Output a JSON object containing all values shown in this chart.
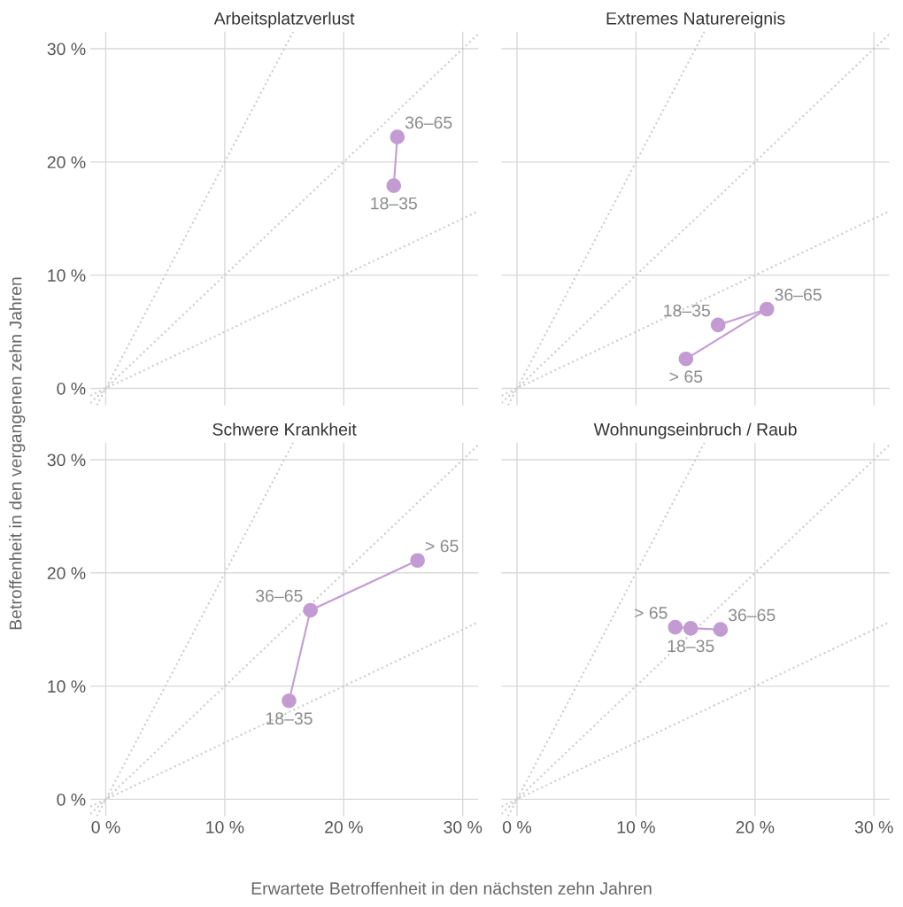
{
  "chart_data": [
    {
      "type": "line",
      "title": "Arbeitsplatzverlust",
      "ylabel": "Betroffenheit in den vergangenen zehn Jahren",
      "xlim": [
        -1.3,
        31.3
      ],
      "ylim": [
        -1.5,
        31.5
      ],
      "xticks": [
        0,
        10,
        20,
        30
      ],
      "yticks": [
        {
          "value": 0,
          "label": "0 %"
        },
        {
          "value": 10,
          "label": "10 %"
        },
        {
          "value": 20,
          "label": "20 %"
        },
        {
          "value": 30,
          "label": "30 %"
        }
      ],
      "grid": true,
      "tick_labels": "y",
      "series": [
        {
          "color": "#cccccc",
          "line_style": "dotted",
          "marker": "none",
          "x": [
            -1.3,
            31.3
          ],
          "values": [
            -0.65,
            15.65
          ]
        },
        {
          "color": "#cccccc",
          "line_style": "dotted",
          "marker": "none",
          "x": [
            -1.3,
            31.3
          ],
          "values": [
            -1.3,
            31.3
          ]
        },
        {
          "color": "#cccccc",
          "line_style": "dotted",
          "marker": "none",
          "x": [
            -0.75,
            15.75
          ],
          "values": [
            -1.5,
            31.5
          ]
        },
        {
          "color": "#c39bd3",
          "line_style": "solid",
          "marker": "circle",
          "x": [
            24.2,
            24.5
          ],
          "values": [
            17.9,
            22.2
          ],
          "value_labels": [
            "18–35",
            "36–65"
          ]
        }
      ]
    },
    {
      "type": "line",
      "title": "Extremes Naturereignis",
      "xlim": [
        -1.3,
        31.3
      ],
      "ylim": [
        -1.5,
        31.5
      ],
      "xticks": [
        0,
        10,
        20,
        30
      ],
      "yticks": [
        0,
        10,
        20,
        30
      ],
      "grid": true,
      "tick_labels": false,
      "series": [
        {
          "color": "#cccccc",
          "line_style": "dotted",
          "marker": "none",
          "x": [
            -1.3,
            31.3
          ],
          "values": [
            -0.65,
            15.65
          ]
        },
        {
          "color": "#cccccc",
          "line_style": "dotted",
          "marker": "none",
          "x": [
            -1.3,
            31.3
          ],
          "values": [
            -1.3,
            31.3
          ]
        },
        {
          "color": "#cccccc",
          "line_style": "dotted",
          "marker": "none",
          "x": [
            -0.75,
            15.75
          ],
          "values": [
            -1.5,
            31.5
          ]
        },
        {
          "color": "#c39bd3",
          "line_style": "solid",
          "marker": "circle",
          "x": [
            16.9,
            21.0,
            14.2
          ],
          "values": [
            5.6,
            7.0,
            2.6
          ],
          "value_labels": [
            "18–35",
            "36–65",
            "> 65"
          ]
        }
      ]
    },
    {
      "type": "line",
      "title": "Schwere Krankheit",
      "xlabel": "Erwartete Betroffenheit in den nächsten zehn Jahren",
      "xlim": [
        -1.3,
        31.3
      ],
      "ylim": [
        -1.5,
        31.5
      ],
      "xticks": [
        {
          "value": 0,
          "label": "0 %"
        },
        {
          "value": 10,
          "label": "10 %"
        },
        {
          "value": 20,
          "label": "20 %"
        },
        {
          "value": 30,
          "label": "30 %"
        }
      ],
      "yticks": [
        {
          "value": 0,
          "label": "0 %"
        },
        {
          "value": 10,
          "label": "10 %"
        },
        {
          "value": 20,
          "label": "20 %"
        },
        {
          "value": 30,
          "label": "30 %"
        }
      ],
      "grid": true,
      "series": [
        {
          "color": "#cccccc",
          "line_style": "dotted",
          "marker": "none",
          "x": [
            -1.3,
            31.3
          ],
          "values": [
            -0.65,
            15.65
          ]
        },
        {
          "color": "#cccccc",
          "line_style": "dotted",
          "marker": "none",
          "x": [
            -1.3,
            31.3
          ],
          "values": [
            -1.3,
            31.3
          ]
        },
        {
          "color": "#cccccc",
          "line_style": "dotted",
          "marker": "none",
          "x": [
            -0.75,
            15.75
          ],
          "values": [
            -1.5,
            31.5
          ]
        },
        {
          "color": "#c39bd3",
          "line_style": "solid",
          "marker": "circle",
          "x": [
            15.4,
            17.2,
            26.2
          ],
          "values": [
            8.7,
            16.7,
            21.1
          ],
          "value_labels": [
            "18–35",
            "36–65",
            "> 65"
          ]
        }
      ]
    },
    {
      "type": "line",
      "title": "Wohnungseinbruch / Raub",
      "xlim": [
        -1.3,
        31.3
      ],
      "ylim": [
        -1.5,
        31.5
      ],
      "xticks": [
        {
          "value": 0,
          "label": "0 %"
        },
        {
          "value": 10,
          "label": "10 %"
        },
        {
          "value": 20,
          "label": "20 %"
        },
        {
          "value": 30,
          "label": "30 %"
        }
      ],
      "yticks": [
        0,
        10,
        20,
        30
      ],
      "grid": true,
      "tick_labels": "x",
      "series": [
        {
          "color": "#cccccc",
          "line_style": "dotted",
          "marker": "none",
          "x": [
            -1.3,
            31.3
          ],
          "values": [
            -0.65,
            15.65
          ]
        },
        {
          "color": "#cccccc",
          "line_style": "dotted",
          "marker": "none",
          "x": [
            -1.3,
            31.3
          ],
          "values": [
            -1.3,
            31.3
          ]
        },
        {
          "color": "#cccccc",
          "line_style": "dotted",
          "marker": "none",
          "x": [
            -0.75,
            15.75
          ],
          "values": [
            -1.5,
            31.5
          ]
        },
        {
          "color": "#c39bd3",
          "line_style": "solid",
          "marker": "circle",
          "x": [
            14.6,
            17.1,
            13.3
          ],
          "values": [
            15.1,
            15.0,
            15.2
          ],
          "value_labels": [
            "18–35",
            "36–65",
            "> 65"
          ]
        }
      ]
    }
  ]
}
